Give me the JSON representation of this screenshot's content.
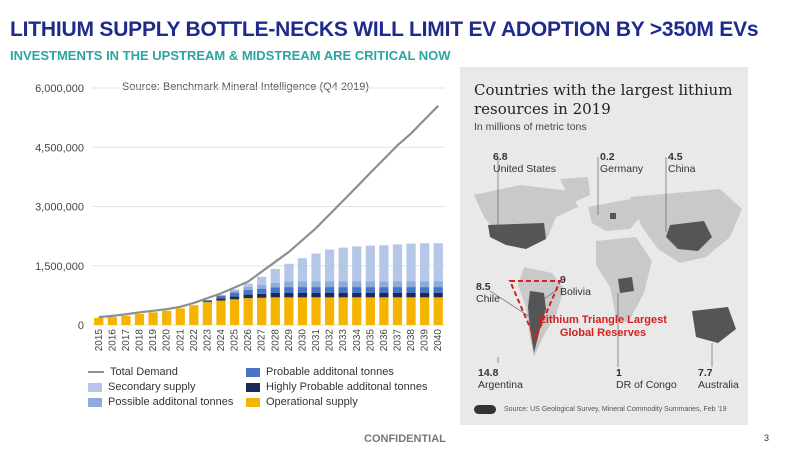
{
  "header": {
    "title": "LITHIUM SUPPLY BOTTLE-NECKS WILL LIMIT EV ADOPTION BY >350M EVs",
    "subtitle": "INVESTMENTS IN THE UPSTREAM & MIDSTREAM ARE CRITICAL NOW"
  },
  "chart_data": [
    {
      "type": "bar",
      "title": "Source: Benchmark Mineral Intelligence (Q4 2019)",
      "xlabel": "",
      "ylabel": "",
      "ylim": [
        0,
        6000000
      ],
      "yticks": [
        "0",
        "1,500,000",
        "3,000,000",
        "4,500,000",
        "6,000,000"
      ],
      "ytick_values": [
        0,
        1500000,
        3000000,
        4500000,
        6000000
      ],
      "categories": [
        "2015",
        "2016",
        "2017",
        "2018",
        "2019",
        "2020",
        "2021",
        "2022",
        "2023",
        "2024",
        "2025",
        "2026",
        "2027",
        "2028",
        "2029",
        "2030",
        "2031",
        "2032",
        "2033",
        "2034",
        "2035",
        "2036",
        "2037",
        "2038",
        "2039",
        "2040"
      ],
      "stacked": true,
      "series": [
        {
          "name": "Operational supply",
          "color": "#f5b400",
          "values": [
            180000,
            200000,
            230000,
            280000,
            320000,
            360000,
            420000,
            500000,
            580000,
            620000,
            650000,
            680000,
            690000,
            700000,
            700000,
            700000,
            700000,
            700000,
            700000,
            700000,
            700000,
            700000,
            700000,
            700000,
            700000,
            700000
          ]
        },
        {
          "name": "Highly Probable additonal tonnes",
          "color": "#1b2a5a",
          "values": [
            0,
            0,
            0,
            0,
            0,
            0,
            0,
            0,
            20000,
            50000,
            70000,
            90000,
            100000,
            110000,
            110000,
            110000,
            110000,
            110000,
            110000,
            110000,
            110000,
            110000,
            110000,
            110000,
            110000,
            110000
          ]
        },
        {
          "name": "Probable additonal tonnes",
          "color": "#4a73c4",
          "values": [
            0,
            0,
            0,
            0,
            0,
            0,
            0,
            0,
            30000,
            70000,
            100000,
            120000,
            130000,
            140000,
            150000,
            150000,
            150000,
            150000,
            150000,
            150000,
            150000,
            150000,
            150000,
            150000,
            150000,
            150000
          ]
        },
        {
          "name": "Possible additonal tonnes",
          "color": "#8faadc",
          "values": [
            0,
            0,
            0,
            0,
            0,
            0,
            0,
            0,
            0,
            20000,
            50000,
            80000,
            100000,
            120000,
            140000,
            150000,
            150000,
            150000,
            150000,
            150000,
            150000,
            150000,
            150000,
            150000,
            150000,
            150000
          ]
        },
        {
          "name": "Secondary supply",
          "color": "#b4c7e7",
          "values": [
            0,
            0,
            0,
            0,
            0,
            0,
            0,
            0,
            0,
            0,
            30000,
            80000,
            200000,
            350000,
            450000,
            580000,
            700000,
            800000,
            850000,
            880000,
            900000,
            910000,
            930000,
            950000,
            960000,
            960000
          ]
        },
        {
          "name": "Total Demand",
          "color": "#8e8e8e",
          "type": "line",
          "values": [
            200000,
            230000,
            270000,
            320000,
            360000,
            400000,
            460000,
            560000,
            680000,
            800000,
            950000,
            1100000,
            1350000,
            1600000,
            1850000,
            2150000,
            2450000,
            2800000,
            3150000,
            3500000,
            3850000,
            4200000,
            4550000,
            4850000,
            5200000,
            5550000
          ]
        }
      ],
      "legend_position": "bottom"
    },
    {
      "type": "table",
      "title": "Countries with the largest lithium resources in 2019",
      "subtitle": "In millions of metric tons",
      "annotation": "Lithium Triangle Largest Global Reserves",
      "source": "Source: US Geological Survey, Mineral Commodity Summaries, Feb '19",
      "countries": [
        {
          "name": "United States",
          "value": "6.8"
        },
        {
          "name": "Germany",
          "value": "0.2"
        },
        {
          "name": "China",
          "value": "4.5"
        },
        {
          "name": "Chile",
          "value": "8.5"
        },
        {
          "name": "Bolivia",
          "value": "9"
        },
        {
          "name": "Argentina",
          "value": "14.8"
        },
        {
          "name": "DR of Congo",
          "value": "1"
        },
        {
          "name": "Australia",
          "value": "7.7"
        }
      ]
    }
  ],
  "legend": {
    "total_demand": "Total Demand",
    "probable": "Probable additonal tonnes",
    "secondary": "Secondary supply",
    "highly_probable": "Highly Probable additonal tonnes",
    "possible": "Possible additonal tonnes",
    "operational": "Operational supply"
  },
  "footer": {
    "confidential": "CONFIDENTIAL",
    "page": "3"
  }
}
